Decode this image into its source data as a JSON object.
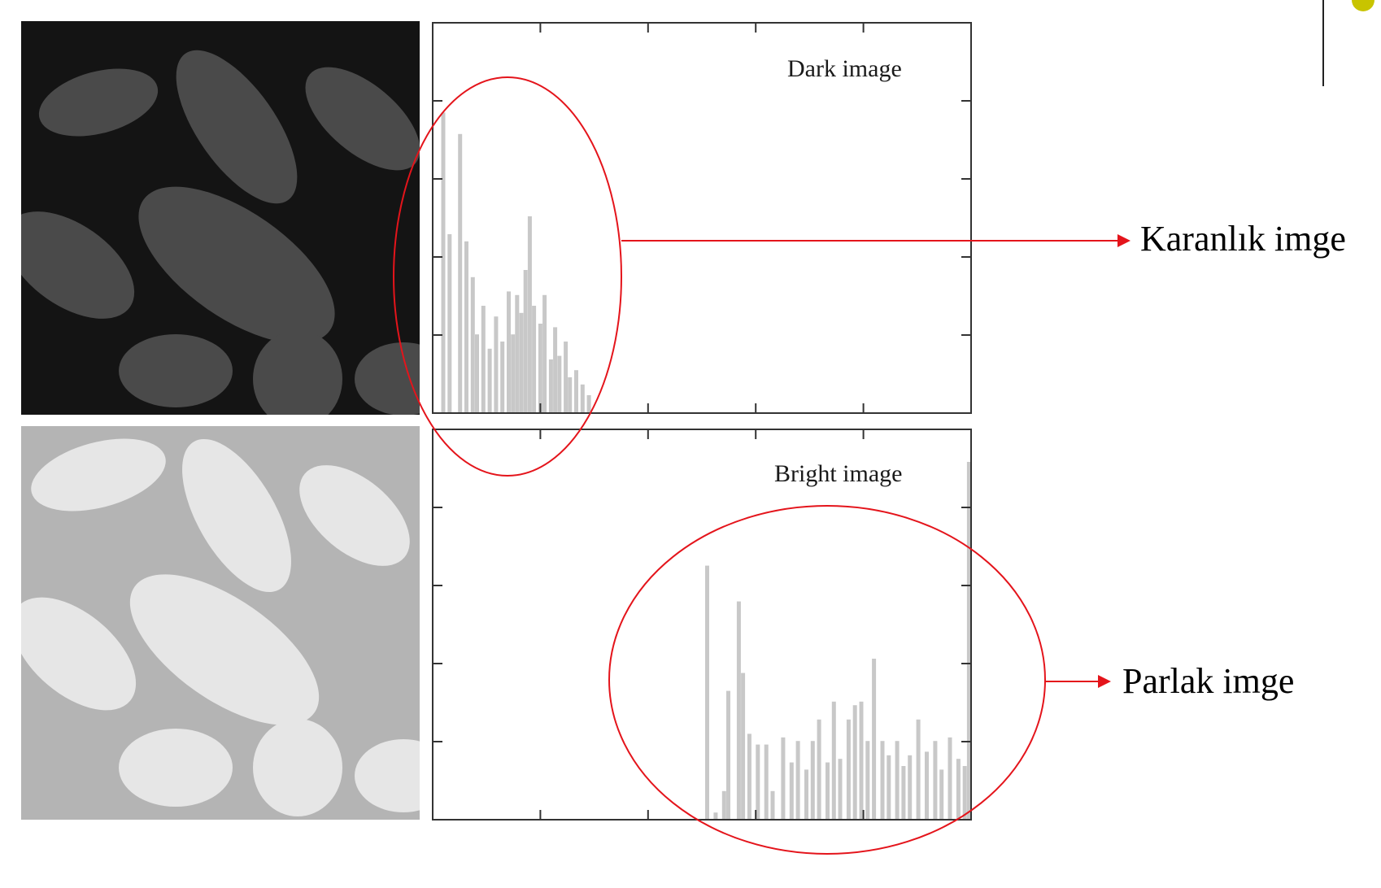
{
  "colors": {
    "callout": "#e4141b",
    "bar": "#c8c8c8",
    "axis": "#333333",
    "accent_dot": "#c8c400",
    "dark_image_bg": "#141414",
    "dark_image_shape": "#4a4a4a",
    "bright_image_bg": "#b4b4b4",
    "bright_image_shape": "#e6e6e6"
  },
  "icons": {
    "slide_accent": "yellow-dot-icon"
  },
  "images": {
    "dark": "dark-pollen-image",
    "bright": "bright-pollen-image"
  },
  "callouts": {
    "dark": "Karanlık imge",
    "bright": "Parlak imge"
  },
  "chart_data": [
    {
      "type": "bar",
      "title": "Dark image",
      "xlabel": "",
      "ylabel": "",
      "xlim": [
        0,
        255
      ],
      "ylim": [
        0,
        1
      ],
      "grid": false,
      "x": [
        5,
        8,
        13,
        16,
        19,
        21,
        24,
        27,
        30,
        33,
        36,
        38,
        40,
        42,
        44,
        46,
        48,
        51,
        53,
        56,
        58,
        60,
        63,
        65,
        68,
        71,
        74
      ],
      "values": [
        0.84,
        0.5,
        0.78,
        0.48,
        0.38,
        0.22,
        0.3,
        0.18,
        0.27,
        0.2,
        0.34,
        0.22,
        0.33,
        0.28,
        0.4,
        0.55,
        0.3,
        0.25,
        0.33,
        0.15,
        0.24,
        0.16,
        0.2,
        0.1,
        0.12,
        0.08,
        0.05
      ]
    },
    {
      "type": "bar",
      "title": "Bright image",
      "xlabel": "",
      "ylabel": "",
      "xlim": [
        0,
        255
      ],
      "ylim": [
        0,
        1
      ],
      "grid": false,
      "x": [
        130,
        134,
        138,
        140,
        145,
        147,
        150,
        154,
        158,
        161,
        166,
        170,
        173,
        177,
        180,
        183,
        187,
        190,
        193,
        197,
        200,
        203,
        206,
        209,
        213,
        216,
        220,
        223,
        226,
        230,
        234,
        238,
        241,
        245,
        249,
        252,
        254
      ],
      "values": [
        0.71,
        0.02,
        0.08,
        0.36,
        0.61,
        0.41,
        0.24,
        0.21,
        0.21,
        0.08,
        0.23,
        0.16,
        0.22,
        0.14,
        0.22,
        0.28,
        0.16,
        0.33,
        0.17,
        0.28,
        0.32,
        0.33,
        0.22,
        0.45,
        0.22,
        0.18,
        0.22,
        0.15,
        0.18,
        0.28,
        0.19,
        0.22,
        0.14,
        0.23,
        0.17,
        0.15,
        1.0
      ]
    }
  ]
}
